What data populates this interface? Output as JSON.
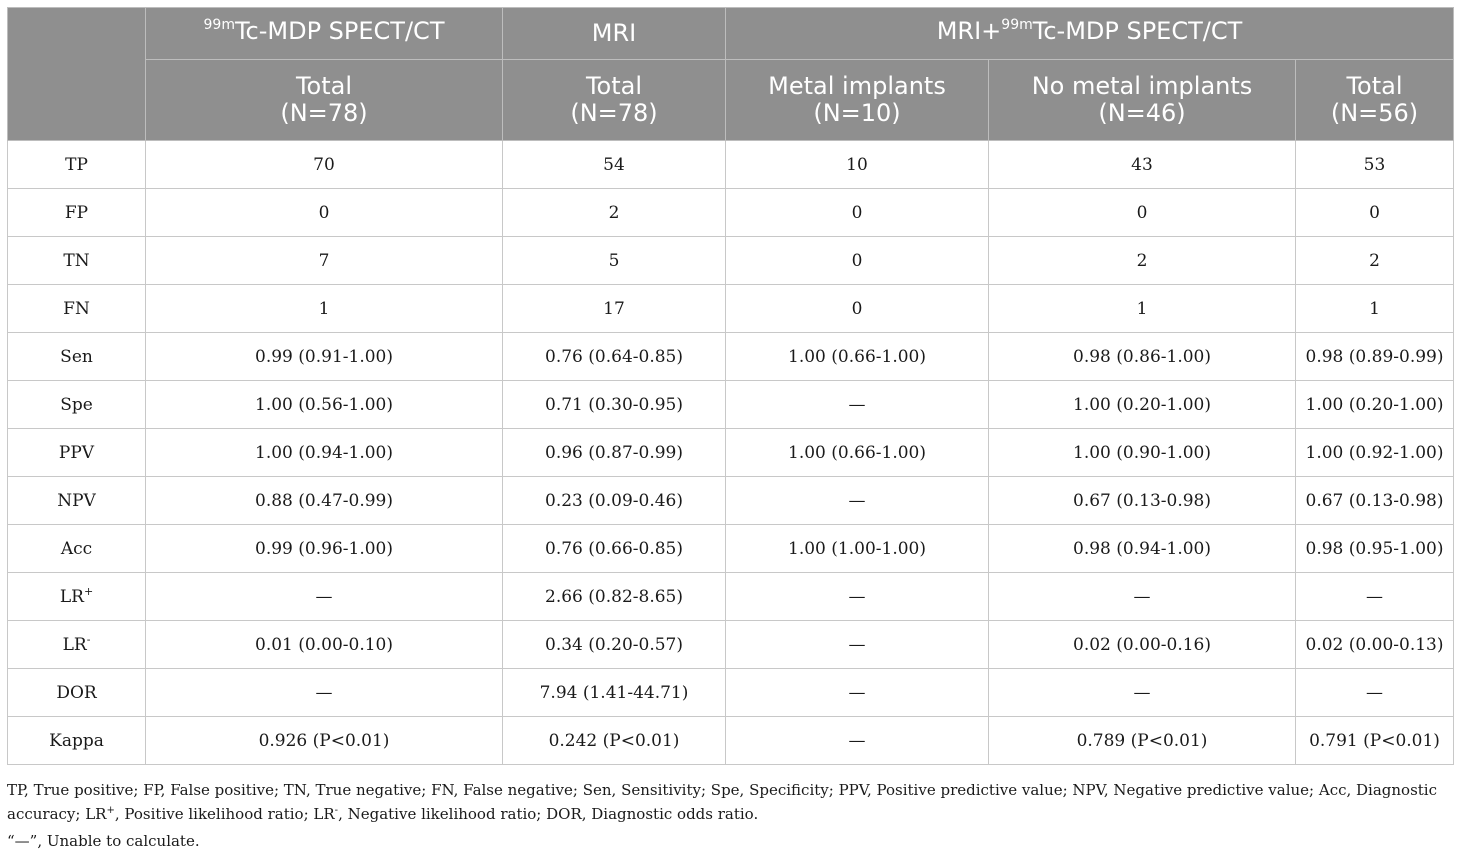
{
  "header": {
    "spect_prefix": "99m",
    "spect_label": "Tc-MDP SPECT/CT",
    "mri_label": "MRI",
    "combined_prefix": "MRI+",
    "combined_sup": "99m",
    "combined_label": "Tc-MDP SPECT/CT",
    "sub": [
      {
        "title": "Total",
        "n": "(N=78)"
      },
      {
        "title": "Total",
        "n": "(N=78)"
      },
      {
        "title": "Metal implants",
        "n": "(N=10)"
      },
      {
        "title": "No metal implants",
        "n": "(N=46)"
      },
      {
        "title": "Total",
        "n": "(N=56)"
      }
    ]
  },
  "rows": [
    {
      "label": "TP",
      "sup": "",
      "cells": [
        "70",
        "54",
        "10",
        "43",
        "53"
      ]
    },
    {
      "label": "FP",
      "sup": "",
      "cells": [
        "0",
        "2",
        "0",
        "0",
        "0"
      ]
    },
    {
      "label": "TN",
      "sup": "",
      "cells": [
        "7",
        "5",
        "0",
        "2",
        "2"
      ]
    },
    {
      "label": "FN",
      "sup": "",
      "cells": [
        "1",
        "17",
        "0",
        "1",
        "1"
      ]
    },
    {
      "label": "Sen",
      "sup": "",
      "cells": [
        "0.99 (0.91-1.00)",
        "0.76 (0.64-0.85)",
        "1.00 (0.66-1.00)",
        "0.98 (0.86-1.00)",
        "0.98 (0.89-0.99)"
      ]
    },
    {
      "label": "Spe",
      "sup": "",
      "cells": [
        "1.00 (0.56-1.00)",
        "0.71 (0.30-0.95)",
        "—",
        "1.00 (0.20-1.00)",
        "1.00 (0.20-1.00)"
      ]
    },
    {
      "label": "PPV",
      "sup": "",
      "cells": [
        "1.00 (0.94-1.00)",
        "0.96 (0.87-0.99)",
        "1.00 (0.66-1.00)",
        "1.00 (0.90-1.00)",
        "1.00 (0.92-1.00)"
      ]
    },
    {
      "label": "NPV",
      "sup": "",
      "cells": [
        "0.88 (0.47-0.99)",
        "0.23 (0.09-0.46)",
        "—",
        "0.67 (0.13-0.98)",
        "0.67 (0.13-0.98)"
      ]
    },
    {
      "label": "Acc",
      "sup": "",
      "cells": [
        "0.99 (0.96-1.00)",
        "0.76 (0.66-0.85)",
        "1.00 (1.00-1.00)",
        "0.98 (0.94-1.00)",
        "0.98 (0.95-1.00)"
      ]
    },
    {
      "label": "LR",
      "sup": "+",
      "cells": [
        "—",
        "2.66 (0.82-8.65)",
        "—",
        "—",
        "—"
      ]
    },
    {
      "label": "LR",
      "sup": "-",
      "cells": [
        "0.01 (0.00-0.10)",
        "0.34 (0.20-0.57)",
        "—",
        "0.02 (0.00-0.16)",
        "0.02 (0.00-0.13)"
      ]
    },
    {
      "label": "DOR",
      "sup": "",
      "cells": [
        "—",
        "7.94 (1.41-44.71)",
        "—",
        "—",
        "—"
      ]
    },
    {
      "label": "Kappa",
      "sup": "",
      "cells": [
        "0.926 (P<0.01)",
        "0.242 (P<0.01)",
        "—",
        "0.789 (P<0.01)",
        "0.791 (P<0.01)"
      ]
    }
  ],
  "footnote": {
    "part1": "TP, True positive; FP, False positive; TN, True negative; FN, False negative; Sen, Sensitivity; Spe, Specificity; PPV, Positive predictive value; NPV, Negative predictive value; Acc, Diagnostic accuracy; LR",
    "sup1": "+",
    "part2": ", Positive likelihood ratio; LR",
    "sup2": "-",
    "part3": ", Negative likelihood ratio; DOR, Diagnostic odds ratio.",
    "line2": "“—”, Unable to calculate."
  }
}
